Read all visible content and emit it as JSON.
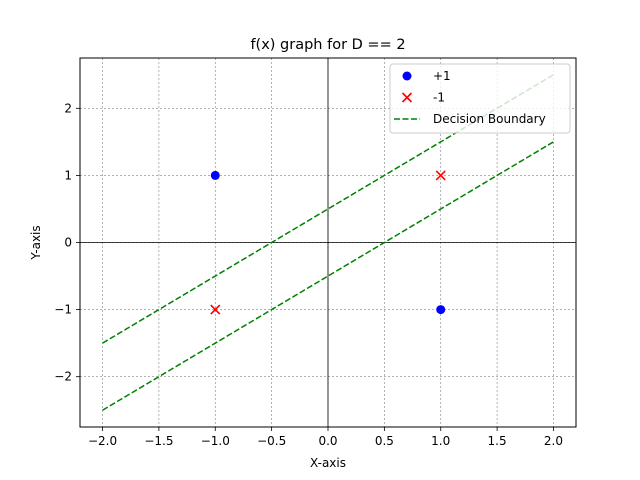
{
  "chart_data": {
    "type": "scatter",
    "title": "f(x) graph for D == 2",
    "xlabel": "X-axis",
    "ylabel": "Y-axis",
    "xlim": [
      -2.2,
      2.2
    ],
    "ylim": [
      -2.75,
      2.75
    ],
    "xticks": [
      -2.0,
      -1.5,
      -1.0,
      -0.5,
      0.0,
      0.5,
      1.0,
      1.5,
      2.0
    ],
    "xtick_labels": [
      "−2.0",
      "−1.5",
      "−1.0",
      "−0.5",
      "0.0",
      "0.5",
      "1.0",
      "1.5",
      "2.0"
    ],
    "yticks": [
      -2,
      -1,
      0,
      1,
      2
    ],
    "ytick_labels": [
      "−2",
      "−1",
      "0",
      "1",
      "2"
    ],
    "grid": true,
    "legend_position": "top-right",
    "series": [
      {
        "name": "+1",
        "kind": "scatter",
        "marker": "circle",
        "color": "#0000ff",
        "points": [
          [
            -1,
            1
          ],
          [
            1,
            -1
          ]
        ]
      },
      {
        "name": "-1",
        "kind": "scatter",
        "marker": "x",
        "color": "#ff0000",
        "points": [
          [
            -1,
            -1
          ],
          [
            1,
            1
          ]
        ]
      },
      {
        "name": "Decision Boundary",
        "kind": "line",
        "style": "dashed",
        "color": "#008000",
        "lines": [
          [
            [
              -2,
              -1.5
            ],
            [
              2,
              2.5
            ]
          ],
          [
            [
              -2,
              -2.5
            ],
            [
              2,
              1.5
            ]
          ]
        ]
      }
    ]
  }
}
